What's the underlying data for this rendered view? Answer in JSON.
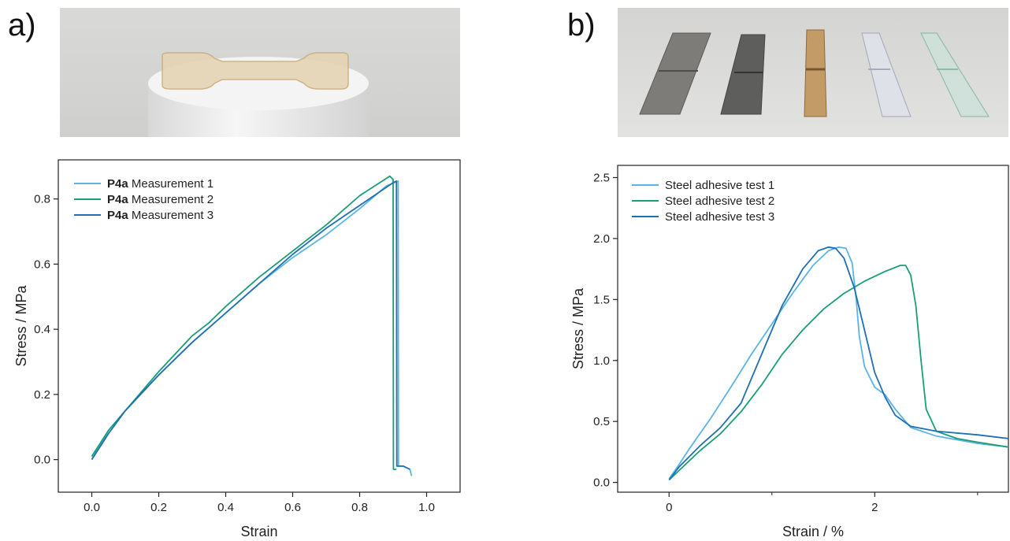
{
  "panels": {
    "a": "a)",
    "b": "b)"
  },
  "photos": {
    "a": {
      "name": "dogbone-specimen-photo"
    },
    "b": {
      "name": "adhesive-substrates-photo"
    }
  },
  "chart_data": [
    {
      "type": "line",
      "xlabel": "Strain",
      "ylabel": "Stress / MPa",
      "xlim": [
        -0.1,
        1.1
      ],
      "ylim": [
        -0.1,
        0.92
      ],
      "xticks": [
        0.0,
        0.2,
        0.4,
        0.6,
        0.8,
        1.0
      ],
      "xtick_labels": [
        "0.0",
        "0.2",
        "0.4",
        "0.6",
        "0.8",
        "1.0"
      ],
      "yticks": [
        0.0,
        0.2,
        0.4,
        0.6,
        0.8
      ],
      "ytick_labels": [
        "0.0",
        "0.2",
        "0.4",
        "0.6",
        "0.8"
      ],
      "legend": "top-left",
      "grid": false,
      "series": [
        {
          "name_bold": "P4a",
          "name_rest": " Measurement 1",
          "color": "#5bb4e5",
          "x": [
            0.0,
            0.05,
            0.1,
            0.2,
            0.3,
            0.4,
            0.5,
            0.6,
            0.7,
            0.8,
            0.88,
            0.915,
            0.916,
            0.93,
            0.95,
            0.955
          ],
          "y": [
            0.0,
            0.09,
            0.15,
            0.26,
            0.36,
            0.45,
            0.54,
            0.62,
            0.69,
            0.77,
            0.84,
            0.855,
            -0.02,
            -0.02,
            -0.03,
            -0.05
          ]
        },
        {
          "name_bold": "P4a",
          "name_rest": " Measurement 2",
          "color": "#1a9e77",
          "x": [
            0.0,
            0.05,
            0.1,
            0.2,
            0.3,
            0.35,
            0.4,
            0.5,
            0.6,
            0.7,
            0.8,
            0.89,
            0.9,
            0.901,
            0.91
          ],
          "y": [
            0.01,
            0.09,
            0.15,
            0.27,
            0.38,
            0.42,
            0.47,
            0.56,
            0.64,
            0.72,
            0.81,
            0.87,
            0.86,
            -0.03,
            -0.03
          ]
        },
        {
          "name_bold": "P4a",
          "name_rest": " Measurement 3",
          "color": "#1f6fb4",
          "x": [
            0.0,
            0.05,
            0.1,
            0.2,
            0.3,
            0.4,
            0.5,
            0.6,
            0.7,
            0.8,
            0.9,
            0.91,
            0.911,
            0.93,
            0.95
          ],
          "y": [
            0.0,
            0.08,
            0.15,
            0.26,
            0.36,
            0.45,
            0.54,
            0.63,
            0.71,
            0.78,
            0.85,
            0.855,
            -0.02,
            -0.02,
            -0.03
          ]
        }
      ]
    },
    {
      "type": "line",
      "xlabel": "Strain / %",
      "ylabel": "Stress / MPa",
      "xlim": [
        -0.5,
        3.3
      ],
      "ylim": [
        -0.08,
        2.6
      ],
      "xticks": [
        0,
        2
      ],
      "xtick_labels": [
        "0",
        "2"
      ],
      "minor_xticks": [
        1,
        3
      ],
      "yticks": [
        0.0,
        0.5,
        1.0,
        1.5,
        2.0,
        2.5
      ],
      "ytick_labels": [
        "0.0",
        "0.5",
        "1.0",
        "1.5",
        "2.0",
        "2.5"
      ],
      "legend": "top-left",
      "grid": false,
      "series": [
        {
          "name": "Steel adhesive test 1",
          "color": "#5bb4e5",
          "x": [
            0.0,
            0.1,
            0.2,
            0.4,
            0.6,
            0.8,
            1.0,
            1.2,
            1.4,
            1.55,
            1.65,
            1.72,
            1.78,
            1.82,
            1.85,
            1.9,
            2.0,
            2.1,
            2.2,
            2.35,
            2.6,
            3.0,
            3.3
          ],
          "y": [
            0.03,
            0.15,
            0.28,
            0.52,
            0.78,
            1.05,
            1.3,
            1.55,
            1.78,
            1.9,
            1.93,
            1.92,
            1.8,
            1.5,
            1.2,
            0.95,
            0.78,
            0.72,
            0.6,
            0.45,
            0.38,
            0.32,
            0.29
          ]
        },
        {
          "name": "Steel adhesive test 2",
          "color": "#1a9e77",
          "x": [
            0.0,
            0.1,
            0.3,
            0.5,
            0.7,
            0.9,
            1.1,
            1.3,
            1.5,
            1.7,
            1.9,
            2.1,
            2.25,
            2.3,
            2.35,
            2.4,
            2.45,
            2.5,
            2.6,
            2.8,
            3.0,
            3.3
          ],
          "y": [
            0.02,
            0.1,
            0.26,
            0.4,
            0.58,
            0.8,
            1.05,
            1.25,
            1.42,
            1.55,
            1.65,
            1.73,
            1.78,
            1.78,
            1.7,
            1.45,
            1.0,
            0.6,
            0.42,
            0.36,
            0.33,
            0.29
          ]
        },
        {
          "name": "Steel adhesive test 3",
          "color": "#1f6fb4",
          "x": [
            0.0,
            0.1,
            0.3,
            0.5,
            0.7,
            0.9,
            1.1,
            1.3,
            1.45,
            1.55,
            1.62,
            1.7,
            1.8,
            1.9,
            2.0,
            2.1,
            2.2,
            2.35,
            2.6,
            3.0,
            3.3
          ],
          "y": [
            0.02,
            0.13,
            0.3,
            0.45,
            0.65,
            1.05,
            1.45,
            1.75,
            1.9,
            1.93,
            1.92,
            1.84,
            1.6,
            1.25,
            0.9,
            0.7,
            0.55,
            0.46,
            0.42,
            0.39,
            0.36
          ]
        }
      ]
    }
  ]
}
